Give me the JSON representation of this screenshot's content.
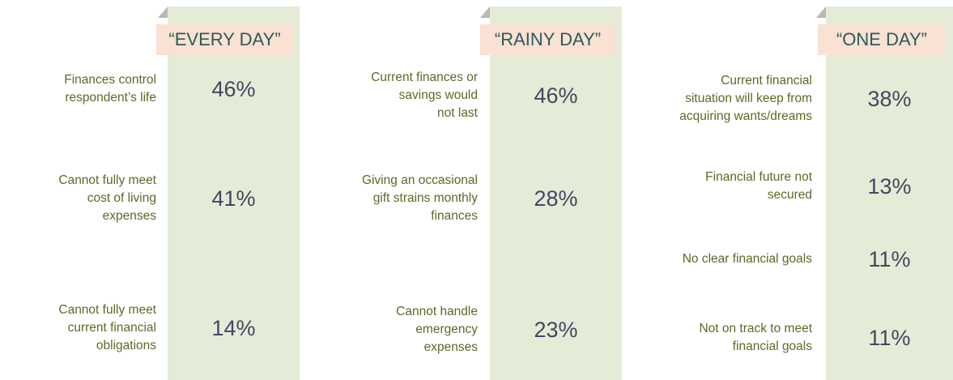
{
  "panels": [
    {
      "title": "“EVERY DAY”",
      "items": [
        {
          "label": [
            "Finances control",
            "respondent’s life"
          ],
          "value": "46%"
        },
        {
          "label": [
            "Cannot fully meet",
            "cost of living",
            "expenses"
          ],
          "value": "41%"
        },
        {
          "label": [
            "Cannot fully meet",
            "current financial",
            "obligations"
          ],
          "value": "14%"
        }
      ]
    },
    {
      "title": "“RAINY DAY”",
      "items": [
        {
          "label": [
            "Current finances or",
            "savings would",
            "not last"
          ],
          "value": "46%"
        },
        {
          "label": [
            "Giving an occasional",
            "gift strains monthly",
            "finances"
          ],
          "value": "28%"
        },
        {
          "label": [
            "Cannot handle",
            "emergency",
            "expenses"
          ],
          "value": "23%"
        }
      ]
    },
    {
      "title": "“ONE DAY”",
      "items": [
        {
          "label": [
            "Current financial",
            "situation will keep from",
            "acquiring wants/dreams"
          ],
          "value": "38%"
        },
        {
          "label": [
            "Financial future not",
            "secured"
          ],
          "value": "13%"
        },
        {
          "label": [
            "No clear financial goals"
          ],
          "value": "11%"
        },
        {
          "label": [
            "Not on track to meet",
            "financial goals"
          ],
          "value": "11%"
        }
      ]
    }
  ]
}
